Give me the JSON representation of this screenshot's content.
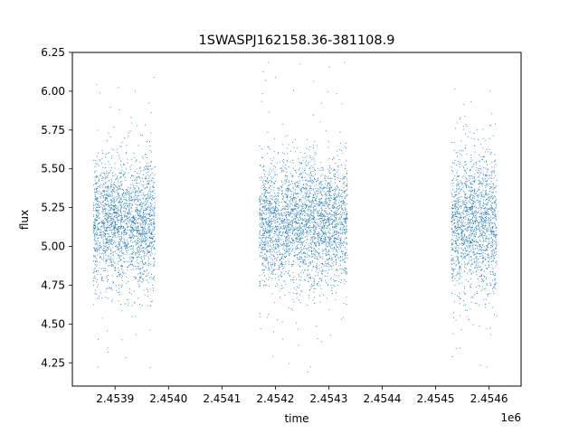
{
  "chart_data": {
    "type": "scatter",
    "title": "1SWASPJ162158.36-381108.9",
    "xlabel": "time",
    "ylabel": "flux",
    "x_offset_label": "1e6",
    "xlim": [
      2453820,
      2454660
    ],
    "ylim": [
      4.1,
      6.25
    ],
    "x_tick_values": [
      2453900,
      2454000,
      2454100,
      2454200,
      2454300,
      2454400,
      2454500,
      2454600
    ],
    "x_tick_labels": [
      "2.4539",
      "2.4540",
      "2.4541",
      "2.4542",
      "2.4543",
      "2.4544",
      "2.4545",
      "2.4546"
    ],
    "y_tick_values": [
      4.25,
      4.5,
      4.75,
      5.0,
      5.25,
      5.5,
      5.75,
      6.0,
      6.25
    ],
    "y_tick_labels": [
      "4.25",
      "4.50",
      "4.75",
      "5.00",
      "5.25",
      "5.50",
      "5.75",
      "6.00",
      "6.25"
    ],
    "grid": false,
    "marker_color": "#1f77b4",
    "series": [
      {
        "observing_seasons": [
          {
            "x_range": [
              2453860,
              2453975
            ],
            "y_core": [
              4.75,
              5.55
            ],
            "y_extremes": [
              4.2,
              6.12
            ]
          },
          {
            "x_range": [
              2454170,
              2454335
            ],
            "y_core": [
              4.75,
              5.55
            ],
            "y_extremes": [
              4.2,
              6.2
            ]
          },
          {
            "x_range": [
              2454530,
              2454615
            ],
            "y_core": [
              4.7,
              5.6
            ],
            "y_extremes": [
              4.2,
              6.12
            ]
          }
        ],
        "x": [
          2453862,
          2453868,
          2453880,
          2453893,
          2453905,
          2453918,
          2453930,
          2453945,
          2453958,
          2453970,
          2454175,
          2454190,
          2454208,
          2454220,
          2454232,
          2454248,
          2454262,
          2454275,
          2454290,
          2454302,
          2454315,
          2454330,
          2454535,
          2454548,
          2454560,
          2454572,
          2454585,
          2454598,
          2454610
        ],
        "y": [
          5.05,
          5.2,
          5.15,
          5.1,
          5.25,
          5.0,
          5.1,
          5.2,
          5.15,
          5.05,
          5.15,
          5.1,
          5.2,
          5.05,
          5.15,
          5.1,
          5.25,
          5.1,
          5.2,
          5.15,
          5.1,
          5.05,
          5.1,
          5.2,
          5.15,
          5.05,
          5.25,
          5.1,
          5.15
        ]
      }
    ]
  }
}
